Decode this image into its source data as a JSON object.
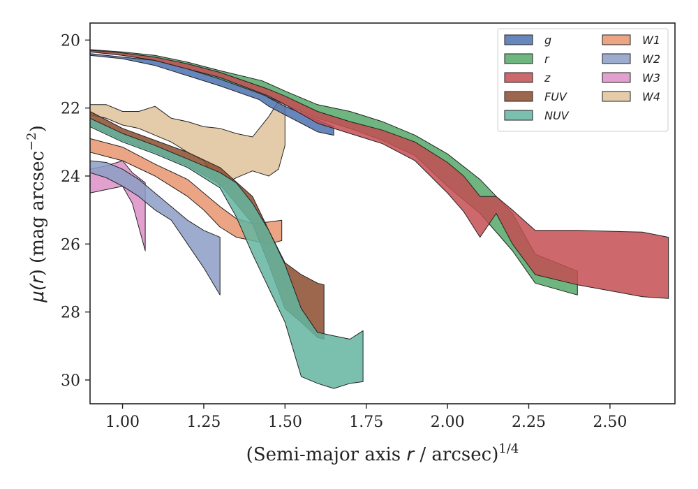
{
  "chart_data": {
    "type": "area",
    "title": "",
    "xlabel": {
      "prefix": "(Semi-major axis ",
      "math": "r",
      "suffix": " / arcsec)",
      "sup": "1/4"
    },
    "ylabel": {
      "mu": "μ(",
      "math": "r",
      "mid": ") (mag arcsec",
      "sup": "−2",
      "end": ")"
    },
    "xlim": [
      0.9,
      2.7
    ],
    "ylim": [
      30.7,
      19.5
    ],
    "y_inverted": true,
    "xticks": [
      1.0,
      1.25,
      1.5,
      1.75,
      2.0,
      2.25,
      2.5
    ],
    "xtick_labels": [
      "1.00",
      "1.25",
      "1.50",
      "1.75",
      "2.00",
      "2.25",
      "2.50"
    ],
    "yticks": [
      20,
      22,
      24,
      26,
      28,
      30
    ],
    "ytick_labels": [
      "20",
      "22",
      "24",
      "26",
      "28",
      "30"
    ],
    "grid": false,
    "legend_position": "top-right",
    "legend_columns": 2,
    "series": [
      {
        "name": "g",
        "color": "#4c72b0",
        "x": [
          0.9,
          1.0,
          1.1,
          1.2,
          1.3,
          1.42,
          1.45,
          1.5,
          1.55,
          1.6,
          1.65
        ],
        "lower": [
          20.4,
          20.5,
          20.6,
          20.85,
          21.1,
          21.5,
          21.7,
          21.95,
          22.15,
          22.35,
          22.55
        ],
        "upper": [
          20.45,
          20.55,
          20.75,
          21.05,
          21.35,
          21.75,
          21.95,
          22.2,
          22.45,
          22.7,
          22.8
        ]
      },
      {
        "name": "r",
        "color": "#55a868",
        "x": [
          0.9,
          1.0,
          1.1,
          1.2,
          1.3,
          1.43,
          1.5,
          1.6,
          1.7,
          1.8,
          1.9,
          2.0,
          2.1,
          2.2,
          2.27,
          2.4
        ],
        "lower": [
          20.28,
          20.35,
          20.45,
          20.65,
          20.9,
          21.2,
          21.5,
          21.9,
          22.1,
          22.4,
          22.8,
          23.35,
          24.1,
          25.1,
          26.3,
          26.8
        ],
        "upper": [
          20.32,
          20.45,
          20.6,
          20.85,
          21.15,
          21.6,
          21.9,
          22.3,
          22.6,
          22.95,
          23.4,
          24.3,
          25.1,
          26.2,
          27.15,
          27.5
        ]
      },
      {
        "name": "z",
        "color": "#c44e52",
        "x": [
          0.9,
          1.0,
          1.1,
          1.2,
          1.3,
          1.45,
          1.5,
          1.6,
          1.7,
          1.8,
          1.9,
          2.0,
          2.05,
          2.1,
          2.15,
          2.2,
          2.27,
          2.4,
          2.6,
          2.68
        ],
        "lower": [
          20.3,
          20.38,
          20.5,
          20.7,
          20.95,
          21.45,
          21.65,
          22.1,
          22.4,
          22.65,
          23.0,
          23.6,
          24.0,
          24.6,
          24.6,
          25.0,
          25.6,
          25.6,
          25.65,
          25.8
        ],
        "upper": [
          20.35,
          20.45,
          20.6,
          20.85,
          21.1,
          21.65,
          21.9,
          22.45,
          22.75,
          23.05,
          23.55,
          24.5,
          25.05,
          25.8,
          25.1,
          26.0,
          26.9,
          27.2,
          27.55,
          27.6
        ]
      },
      {
        "name": "FUV",
        "color": "#8c4c2e",
        "x": [
          0.9,
          1.0,
          1.1,
          1.2,
          1.3,
          1.4,
          1.45,
          1.5,
          1.55,
          1.6,
          1.62
        ],
        "lower": [
          22.1,
          22.6,
          22.95,
          23.3,
          23.75,
          24.6,
          25.6,
          26.55,
          26.9,
          27.15,
          27.2
        ],
        "upper": [
          22.5,
          22.95,
          23.3,
          23.7,
          24.25,
          25.4,
          26.6,
          27.9,
          28.3,
          28.75,
          28.8
        ]
      },
      {
        "name": "NUV",
        "color": "#64b5a0",
        "x": [
          0.9,
          1.0,
          1.1,
          1.2,
          1.3,
          1.35,
          1.4,
          1.45,
          1.5,
          1.55,
          1.6,
          1.65,
          1.7,
          1.74
        ],
        "lower": [
          22.3,
          22.75,
          23.1,
          23.5,
          23.9,
          24.2,
          24.8,
          25.6,
          26.6,
          27.9,
          28.6,
          28.7,
          28.8,
          28.55
        ],
        "upper": [
          22.55,
          23.0,
          23.35,
          23.75,
          24.35,
          25.2,
          26.3,
          27.3,
          28.3,
          29.9,
          30.1,
          30.25,
          30.1,
          30.05
        ]
      },
      {
        "name": "W1",
        "color": "#e8956f",
        "x": [
          0.9,
          1.0,
          1.1,
          1.2,
          1.25,
          1.3,
          1.35,
          1.4,
          1.45,
          1.49
        ],
        "lower": [
          22.9,
          23.15,
          23.65,
          24.1,
          24.5,
          24.9,
          25.25,
          25.4,
          25.35,
          25.3
        ],
        "upper": [
          23.3,
          23.55,
          24.0,
          24.6,
          25.0,
          25.5,
          25.8,
          25.9,
          26.0,
          25.9
        ]
      },
      {
        "name": "W2",
        "color": "#8c9dc5",
        "x": [
          0.9,
          0.95,
          1.0,
          1.05,
          1.1,
          1.15,
          1.2,
          1.25,
          1.3
        ],
        "lower": [
          23.55,
          23.6,
          23.8,
          24.1,
          24.5,
          24.9,
          25.3,
          25.6,
          25.8
        ],
        "upper": [
          23.9,
          24.05,
          24.3,
          24.6,
          25.0,
          25.3,
          26.0,
          26.7,
          27.5
        ]
      },
      {
        "name": "W3",
        "color": "#dd8fc7",
        "x": [
          0.9,
          0.95,
          1.0,
          1.03,
          1.07
        ],
        "lower": [
          23.8,
          23.7,
          23.55,
          23.9,
          24.2
        ],
        "upper": [
          24.5,
          24.4,
          24.3,
          24.8,
          26.2
        ]
      },
      {
        "name": "W4",
        "color": "#dfc39b",
        "x": [
          0.9,
          0.95,
          1.0,
          1.05,
          1.1,
          1.15,
          1.2,
          1.25,
          1.3,
          1.35,
          1.4,
          1.45,
          1.48,
          1.5
        ],
        "lower": [
          21.9,
          21.9,
          22.1,
          22.1,
          21.95,
          22.3,
          22.4,
          22.55,
          22.6,
          22.75,
          22.85,
          22.25,
          21.8,
          21.85
        ],
        "upper": [
          22.2,
          22.3,
          22.5,
          22.6,
          22.8,
          23.0,
          23.3,
          23.55,
          24.3,
          24.05,
          23.85,
          24.0,
          23.8,
          23.1
        ]
      }
    ]
  }
}
